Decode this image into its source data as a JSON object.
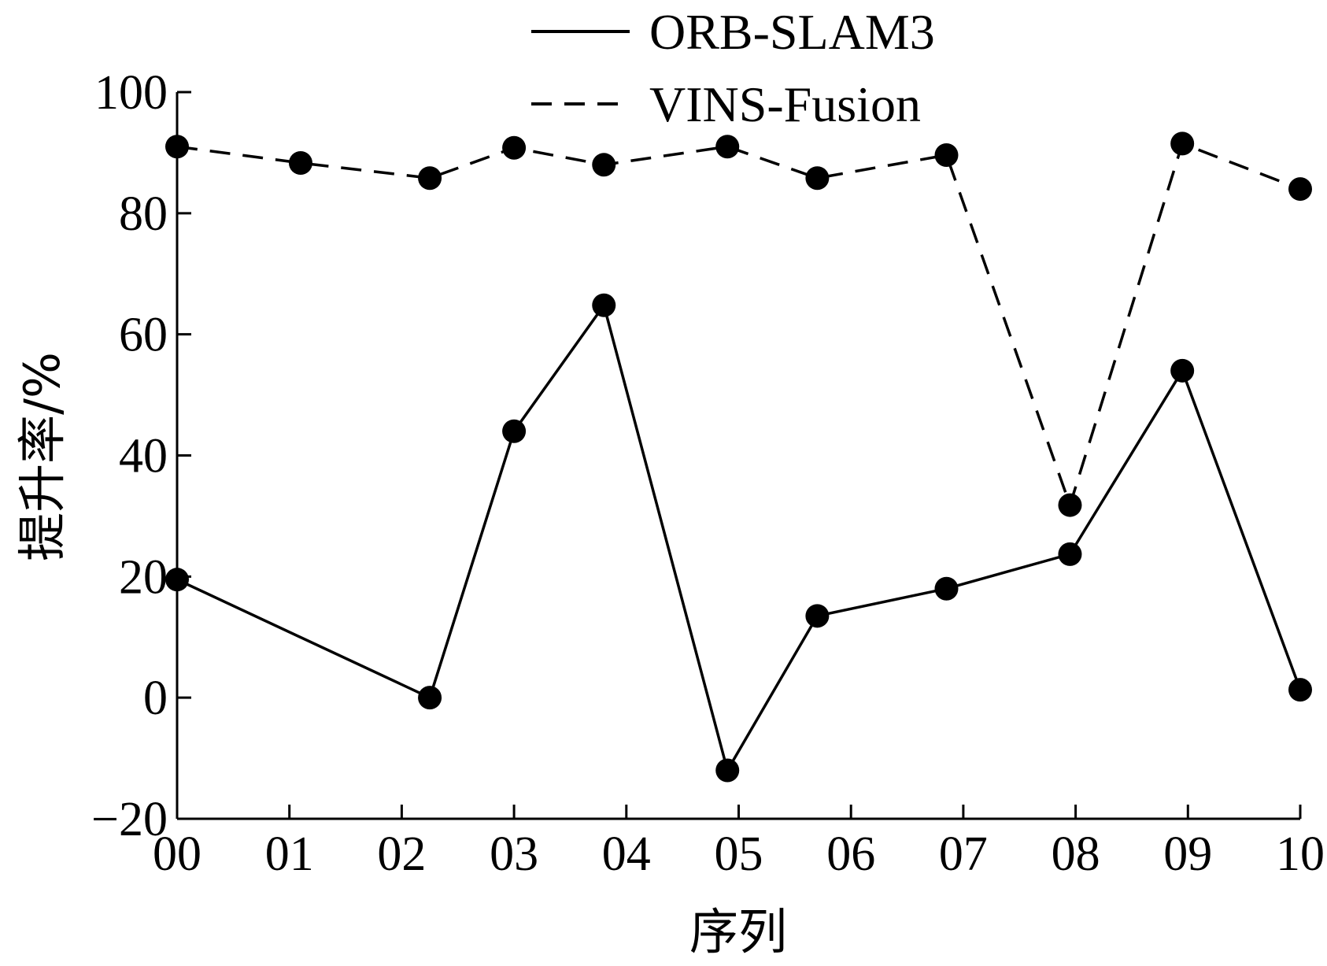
{
  "chart_data": {
    "type": "line",
    "xlabel": "序列",
    "ylabel": "提升率/%",
    "ylim": [
      -20,
      100
    ],
    "yticks": [
      -20,
      0,
      20,
      40,
      60,
      80,
      100
    ],
    "ytick_labels": [
      "−20",
      "0",
      "20",
      "40",
      "60",
      "80",
      "100"
    ],
    "xlim": [
      0,
      10
    ],
    "xticks": [
      0,
      1,
      2,
      3,
      4,
      5,
      6,
      7,
      8,
      9,
      10
    ],
    "xtick_labels": [
      "00",
      "01",
      "02",
      "03",
      "04",
      "05",
      "06",
      "07",
      "08",
      "09",
      "10"
    ],
    "grid": false,
    "legend_position": "top-center",
    "series": [
      {
        "name": "ORB-SLAM3",
        "line_style": "solid",
        "color": "#000000",
        "x": [
          0,
          2.25,
          3.0,
          3.8,
          4.9,
          5.7,
          6.85,
          7.95,
          8.95,
          10.0
        ],
        "y": [
          19.5,
          0,
          44,
          64.8,
          -12,
          13.5,
          18,
          23.7,
          54,
          1.3
        ]
      },
      {
        "name": "VINS-Fusion",
        "line_style": "dashed",
        "color": "#000000",
        "x": [
          0,
          1.1,
          2.25,
          3.0,
          3.8,
          4.9,
          5.7,
          6.85,
          7.95,
          8.95,
          10.0
        ],
        "y": [
          91,
          88.3,
          85.8,
          90.8,
          88,
          91,
          85.8,
          89.6,
          31.8,
          91.5,
          84
        ]
      }
    ]
  }
}
